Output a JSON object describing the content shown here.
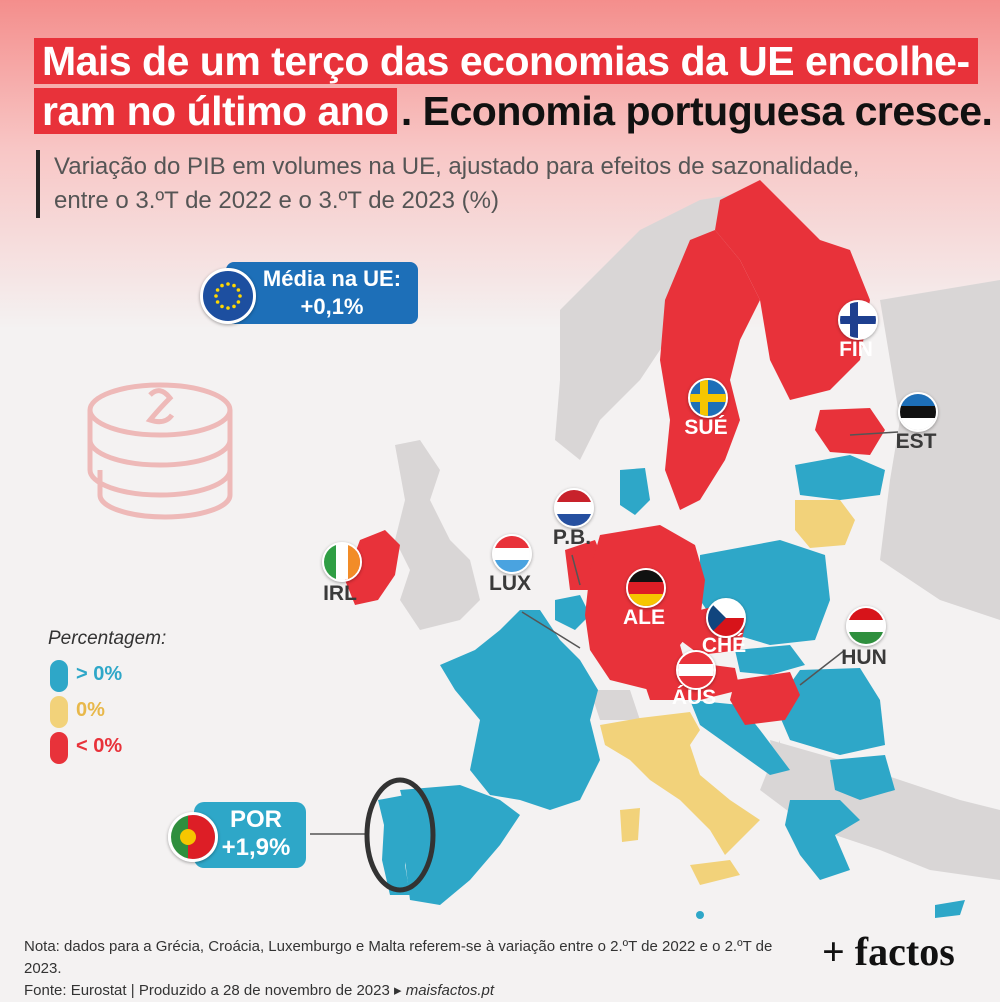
{
  "title": {
    "line1_highlight": "Mais de um terço das economias da UE encolhe-",
    "line2_highlight": "ram no último ano",
    "line2_rest": ". Economia portuguesa cresce."
  },
  "subtitle": {
    "line1": "Variação do PIB em volumes na UE, ajustado para efeitos de sazonalidade,",
    "line2": "entre o 3.ºT de 2022 e o 3.ºT de 2023 (%)"
  },
  "eu_average": {
    "label": "Média na UE:",
    "value": "+0,1%"
  },
  "portugal": {
    "label": "POR",
    "value": "+1,9%"
  },
  "legend": {
    "title": "Percentagem:",
    "items": [
      {
        "label": "> 0%",
        "color": "#2ea7c8"
      },
      {
        "label": "0%",
        "color": "#f2d27a"
      },
      {
        "label": "< 0%",
        "color": "#e8323a"
      }
    ]
  },
  "countries_labeled": {
    "fin": "FIN",
    "sue": "SUÉ",
    "est": "EST",
    "pb": "P.B.",
    "lux": "LUX",
    "irl": "IRL",
    "ale": "ALE",
    "che": "CHÉ",
    "hun": "HUN",
    "aus": "ÁUS"
  },
  "colors": {
    "positive": "#2ea7c8",
    "zero": "#f2d27a",
    "negative": "#e8323a",
    "non_eu": "#d9d6d6"
  },
  "footer": {
    "note": "Nota: dados para a Grécia, Croácia, Luxemburgo e Malta referem-se à variação entre o 2.ºT de 2022 e o 2.ºT de 2023.",
    "source": "Fonte: Eurostat",
    "produced": "Produzido a 28 de novembro de 2023",
    "site": "maisfactos.pt"
  },
  "brand": "+ factos"
}
